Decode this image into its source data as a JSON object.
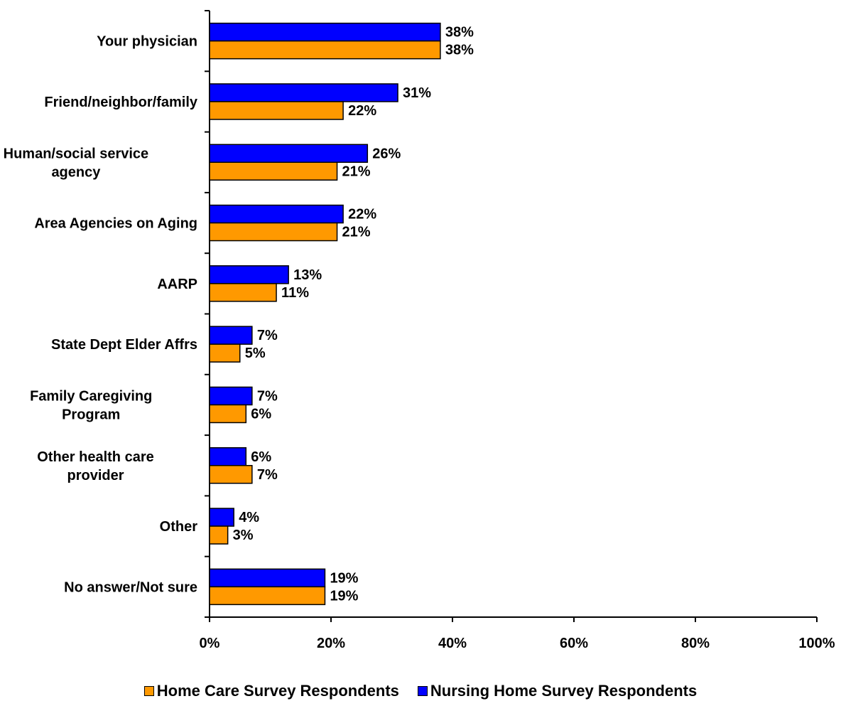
{
  "chart_data": {
    "type": "bar",
    "orientation": "horizontal",
    "categories": [
      [
        "Your physician"
      ],
      [
        "Friend/neighbor/family"
      ],
      [
        "Human/social service",
        "agency"
      ],
      [
        "Area Agencies on Aging"
      ],
      [
        "AARP"
      ],
      [
        "State Dept Elder Affrs"
      ],
      [
        "Family Caregiving",
        "Program"
      ],
      [
        "Other health care",
        "provider"
      ],
      [
        "Other"
      ],
      [
        "No answer/Not sure"
      ]
    ],
    "series": [
      {
        "name": "Nursing Home Survey Respondents",
        "color": "#0000FF",
        "values": [
          38,
          31,
          26,
          22,
          13,
          7,
          7,
          6,
          4,
          19
        ],
        "labels": [
          "38%",
          "31%",
          "26%",
          "22%",
          "13%",
          "7%",
          "7%",
          "6%",
          "4%",
          "19%"
        ]
      },
      {
        "name": "Home Care Survey Respondents",
        "color": "#FF9900",
        "values": [
          38,
          22,
          21,
          21,
          11,
          5,
          6,
          7,
          3,
          19
        ],
        "labels": [
          "38%",
          "22%",
          "21%",
          "21%",
          "11%",
          "5%",
          "6%",
          "7%",
          "3%",
          "19%"
        ]
      }
    ],
    "x_ticks": [
      "0%",
      "20%",
      "40%",
      "60%",
      "80%",
      "100%"
    ],
    "xlim": [
      0,
      100
    ],
    "grid": false,
    "legend_position": "bottom",
    "legend": [
      {
        "name": "Home Care Survey Respondents",
        "color": "#FF9900"
      },
      {
        "name": "Nursing Home Survey Respondents",
        "color": "#0000FF"
      }
    ]
  }
}
